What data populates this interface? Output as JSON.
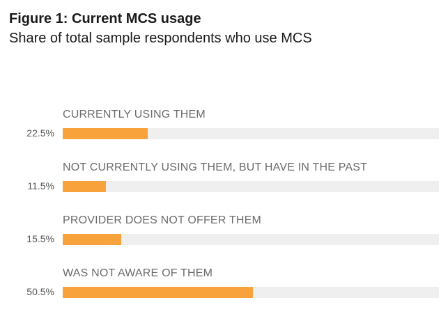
{
  "chart_data": {
    "type": "bar",
    "orientation": "horizontal",
    "title": "Figure 1: Current MCS usage",
    "subtitle": "Share of total sample respondents who use MCS",
    "categories": [
      "CURRENTLY USING THEM",
      "NOT CURRENTLY USING THEM, BUT HAVE IN THE PAST",
      "PROVIDER DOES NOT OFFER THEM",
      "WAS NOT AWARE OF THEM"
    ],
    "values": [
      22.5,
      11.5,
      15.5,
      50.5
    ],
    "value_labels": [
      "22.5%",
      "11.5%",
      "15.5%",
      "50.5%"
    ],
    "xlim": [
      0,
      100
    ],
    "grid": false,
    "legend": "none",
    "colors": {
      "bar": "#f7a23b",
      "track": "#efefef"
    }
  }
}
